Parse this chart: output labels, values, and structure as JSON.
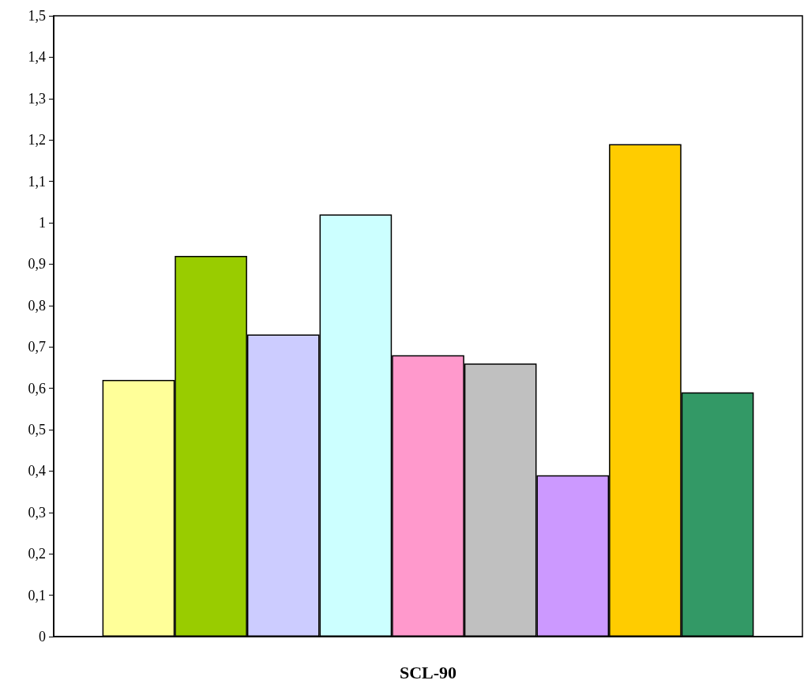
{
  "chart_data": {
    "type": "bar",
    "categories": [
      "SCL-90"
    ],
    "series": [
      {
        "color": "#ffff99",
        "values": [
          0.62
        ]
      },
      {
        "color": "#99cc00",
        "values": [
          0.92
        ]
      },
      {
        "color": "#ccccff",
        "values": [
          0.73
        ]
      },
      {
        "color": "#ccffff",
        "values": [
          1.02
        ]
      },
      {
        "color": "#ff99cc",
        "values": [
          0.68
        ]
      },
      {
        "color": "#c0c0c0",
        "values": [
          0.66
        ]
      },
      {
        "color": "#cc99ff",
        "values": [
          0.39
        ]
      },
      {
        "color": "#ffcc00",
        "values": [
          1.19
        ]
      },
      {
        "color": "#339966",
        "values": [
          0.59
        ]
      }
    ],
    "ylim": [
      0,
      1.5
    ],
    "yticks": [
      {
        "value": 0,
        "label": "0"
      },
      {
        "value": 0.1,
        "label": "0,1"
      },
      {
        "value": 0.2,
        "label": "0,2"
      },
      {
        "value": 0.3,
        "label": "0,3"
      },
      {
        "value": 0.4,
        "label": "0,4"
      },
      {
        "value": 0.5,
        "label": "0,5"
      },
      {
        "value": 0.6,
        "label": "0,6"
      },
      {
        "value": 0.7,
        "label": "0,7"
      },
      {
        "value": 0.8,
        "label": "0,8"
      },
      {
        "value": 0.9,
        "label": "0,9"
      },
      {
        "value": 1,
        "label": "1"
      },
      {
        "value": 1.1,
        "label": "1,1"
      },
      {
        "value": 1.2,
        "label": "1,2"
      },
      {
        "value": 1.3,
        "label": "1,3"
      },
      {
        "value": 1.4,
        "label": "1,4"
      },
      {
        "value": 1.5,
        "label": "1,5"
      }
    ]
  }
}
